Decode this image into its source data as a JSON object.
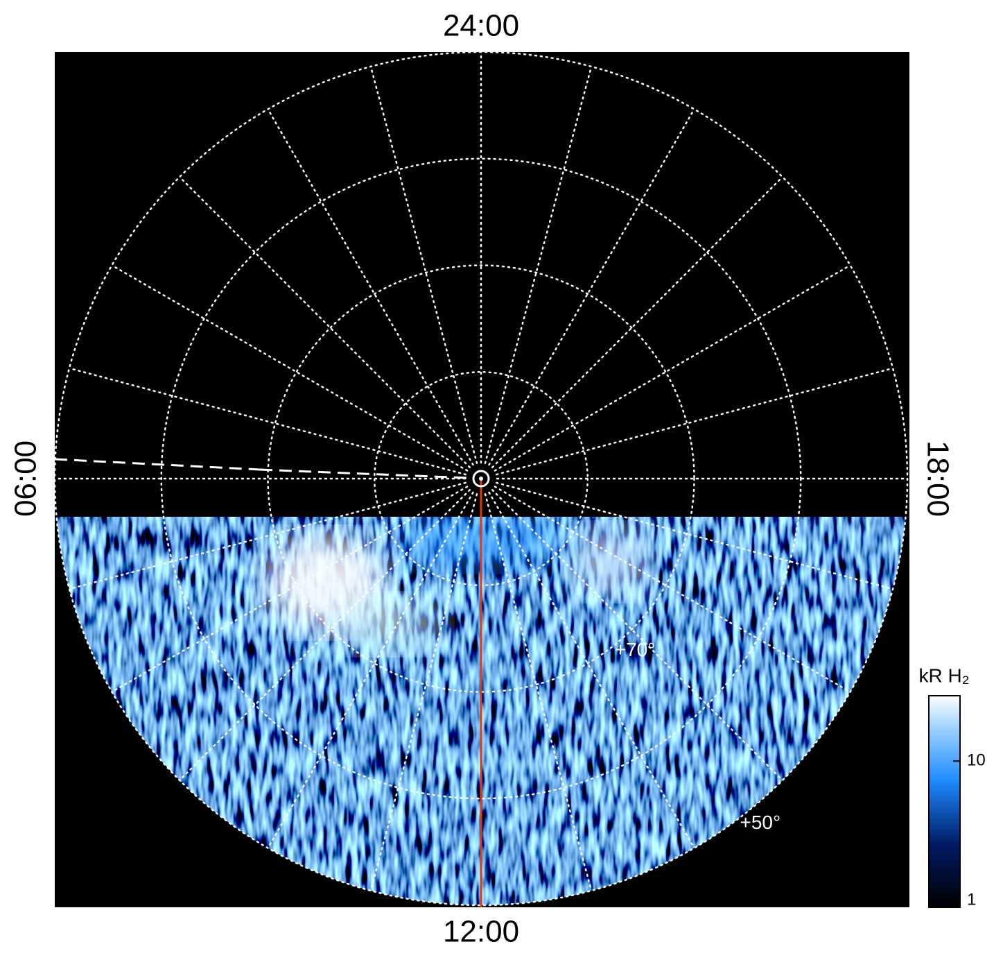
{
  "chart_data": {
    "type": "polar-image",
    "direction_labels": {
      "top": "24:00",
      "bottom": "12:00",
      "left": "06:00",
      "right": "18:00"
    },
    "latitude_rings": [
      80,
      70,
      60,
      50
    ],
    "latitude_labels": [
      {
        "value": 70,
        "label": "+70°"
      },
      {
        "value": 50,
        "label": "+50°"
      }
    ],
    "grid": true,
    "colorbar": {
      "label": "kR H₂",
      "log_scale": true,
      "ylim": [
        1,
        28
      ],
      "yticks": [
        {
          "value": 1,
          "label": "1"
        },
        {
          "value": 10,
          "label": "10"
        }
      ]
    }
  }
}
